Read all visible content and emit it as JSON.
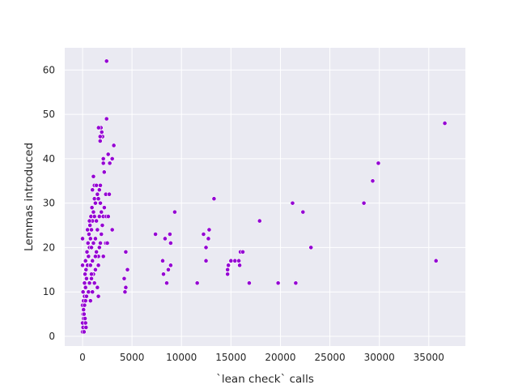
{
  "chart_data": {
    "type": "scatter",
    "xlabel": "`lean check` calls",
    "ylabel": "Lemmas introduced",
    "color": "#9400d3",
    "xlim": [
      -1800,
      38700
    ],
    "ylim": [
      -2.2,
      65
    ],
    "xticks": [
      0,
      5000,
      10000,
      15000,
      20000,
      25000,
      30000,
      35000
    ],
    "yticks": [
      0,
      10,
      20,
      30,
      40,
      50,
      60
    ],
    "grid": true,
    "x": [
      2430,
      2430,
      36620,
      29900,
      29330,
      28440,
      35730,
      13290,
      17900,
      21230,
      22280,
      23090,
      21550,
      19770,
      16850,
      15960,
      16200,
      15800,
      15400,
      15880,
      15000,
      14740,
      14660,
      14660,
      12800,
      12720,
      12230,
      12480,
      12480,
      11590,
      9320,
      8830,
      8910,
      8340,
      8910,
      8670,
      8510,
      8100,
      8180,
      7370,
      4370,
      4540,
      4210,
      4370,
      4290,
      3000,
      2750,
      2590,
      3160,
      2510,
      2350,
      2350,
      2190,
      2100,
      2100,
      2020,
      1940,
      1860,
      1780,
      1620,
      1780,
      0,
      50,
      0,
      100,
      50,
      150,
      0,
      100,
      200,
      50,
      300,
      200,
      400,
      250,
      350,
      500,
      300,
      600,
      450,
      700,
      550,
      800,
      650,
      900,
      750,
      1000,
      850,
      1100,
      950,
      1300,
      1200,
      1500,
      1000,
      1200,
      1400,
      1100,
      1600,
      1700,
      1800,
      1900,
      1700,
      2000,
      1500,
      1300,
      1100,
      900,
      1400,
      1600,
      1000,
      800,
      1300,
      1100,
      900,
      700,
      1500,
      1600,
      600,
      400,
      300,
      200,
      100,
      150,
      250,
      300,
      350,
      150,
      0,
      0,
      500,
      700,
      1200,
      1800,
      2100,
      2200,
      2400,
      1900,
      1800,
      1600,
      1200,
      1000,
      800,
      2500,
      2600,
      2700,
      3000,
      2100,
      1700,
      1400,
      900,
      1300
    ],
    "y": [
      62,
      49,
      48,
      39,
      35,
      30,
      17,
      31,
      26,
      30,
      28,
      20,
      12,
      12,
      12,
      19,
      19,
      17,
      17,
      16,
      17,
      16,
      15,
      14,
      24,
      22,
      23,
      20,
      17,
      12,
      28,
      23,
      21,
      22,
      16,
      15,
      12,
      17,
      14,
      23,
      19,
      15,
      13,
      11,
      10,
      40,
      39,
      41,
      43,
      32,
      32,
      21,
      37,
      40,
      39,
      45,
      46,
      47,
      45,
      47,
      44,
      1,
      2,
      3,
      4,
      5,
      6,
      7,
      8,
      9,
      10,
      11,
      12,
      13,
      14,
      15,
      16,
      17,
      18,
      19,
      20,
      21,
      22,
      23,
      24,
      25,
      26,
      27,
      28,
      29,
      30,
      31,
      32,
      33,
      34,
      34,
      36,
      31,
      33,
      30,
      28,
      27,
      25,
      24,
      22,
      21,
      20,
      19,
      18,
      17,
      16,
      15,
      14,
      13,
      12,
      11,
      9,
      10,
      9,
      8,
      7,
      6,
      5,
      4,
      3,
      2,
      1,
      16,
      22,
      24,
      26,
      27,
      34,
      27,
      29,
      27,
      23,
      21,
      16,
      12,
      10,
      8,
      21,
      27,
      32,
      24,
      18,
      20,
      26,
      14,
      18
    ]
  }
}
